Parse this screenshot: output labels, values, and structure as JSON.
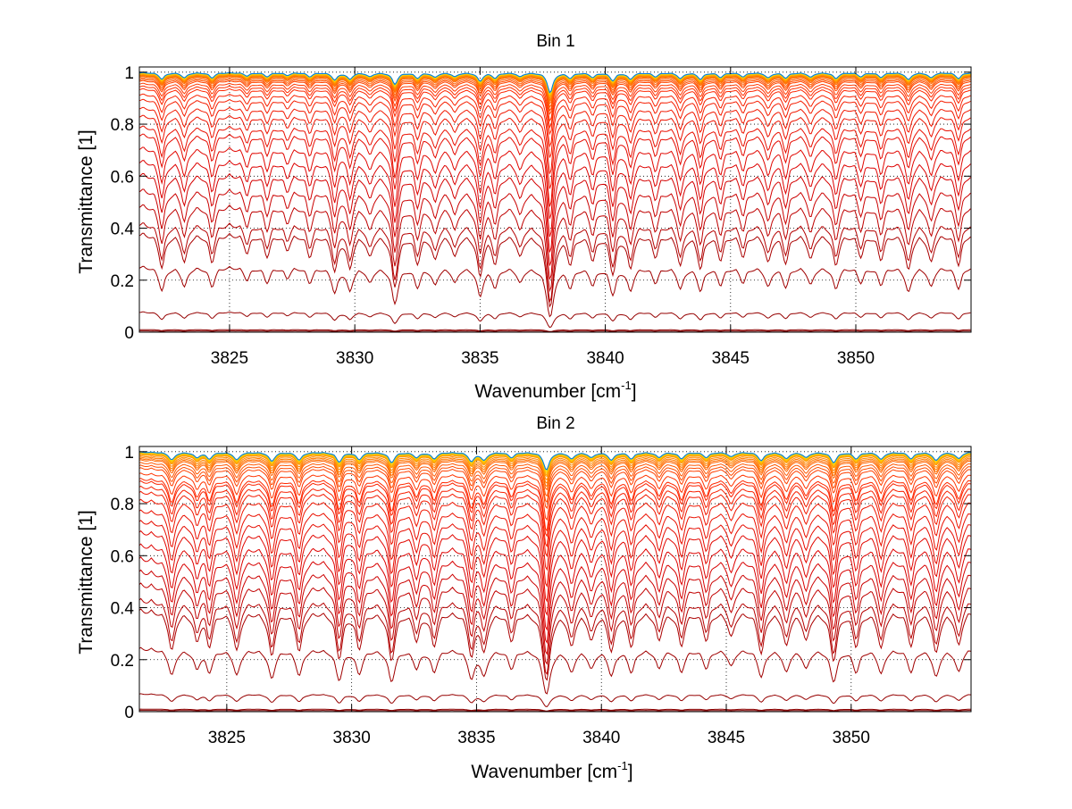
{
  "chart_data": [
    {
      "type": "line",
      "title": "Bin 1",
      "xlabel": "Wavenumber [cm",
      "xlabel_sup": "-1",
      "xlabel_end": "]",
      "ylabel": "Transmittance [1]",
      "xlim": [
        3821.4,
        3854.6
      ],
      "ylim": [
        0,
        1.02
      ],
      "xticks": [
        3825,
        3830,
        3835,
        3840,
        3845,
        3850
      ],
      "yticks": [
        0,
        0.2,
        0.4,
        0.6,
        0.8,
        1
      ],
      "ytick_labels": [
        "0",
        "0.2",
        "0.4",
        "0.6",
        "0.8",
        "1"
      ],
      "grid": true,
      "model": "T(x) = baseline * exp(-scale * sum(depth * w^2/((x-pos)^2 + w^2)))",
      "line_width": 0.13,
      "absorption_lines": [
        [
          3822.3,
          0.5
        ],
        [
          3823.2,
          0.4
        ],
        [
          3824.3,
          0.4
        ],
        [
          3825.7,
          0.25
        ],
        [
          3826.5,
          0.3
        ],
        [
          3827.3,
          0.2
        ],
        [
          3828.2,
          0.3
        ],
        [
          3829.2,
          0.55
        ],
        [
          3829.8,
          0.5
        ],
        [
          3830.6,
          0.3
        ],
        [
          3831.6,
          0.9
        ],
        [
          3832.5,
          0.4
        ],
        [
          3833.2,
          0.35
        ],
        [
          3834.0,
          0.3
        ],
        [
          3835.0,
          0.65
        ],
        [
          3835.6,
          0.4
        ],
        [
          3836.6,
          0.3
        ],
        [
          3837.8,
          1.6
        ],
        [
          3838.6,
          0.4
        ],
        [
          3839.5,
          0.35
        ],
        [
          3840.3,
          0.6
        ],
        [
          3841.0,
          0.5
        ],
        [
          3842.0,
          0.3
        ],
        [
          3843.0,
          0.45
        ],
        [
          3843.8,
          0.5
        ],
        [
          3844.6,
          0.35
        ],
        [
          3845.5,
          0.3
        ],
        [
          3846.5,
          0.4
        ],
        [
          3847.2,
          0.4
        ],
        [
          3848.2,
          0.35
        ],
        [
          3849.2,
          0.45
        ],
        [
          3850.2,
          0.3
        ],
        [
          3851.0,
          0.35
        ],
        [
          3852.1,
          0.55
        ],
        [
          3853.0,
          0.4
        ],
        [
          3854.1,
          0.45
        ]
      ],
      "series_baselines": [
        0.005,
        0.01,
        0.08,
        0.26,
        0.39,
        0.43,
        0.5,
        0.56,
        0.62,
        0.67,
        0.72,
        0.77,
        0.8,
        0.84,
        0.87,
        0.9,
        0.92,
        0.94,
        0.95,
        0.96,
        0.97,
        0.975,
        0.98,
        0.985,
        0.988,
        0.99,
        0.992,
        0.994,
        0.995,
        0.996,
        0.997,
        0.998,
        0.999,
        1.0,
        1.0,
        1.0
      ]
    },
    {
      "type": "line",
      "title": "Bin 2",
      "xlabel": "Wavenumber [cm",
      "xlabel_sup": "-1",
      "xlabel_end": "]",
      "ylabel": "Transmittance [1]",
      "xlim": [
        3821.5,
        3854.8
      ],
      "ylim": [
        0,
        1.02
      ],
      "xticks": [
        3825,
        3830,
        3835,
        3840,
        3845,
        3850
      ],
      "yticks": [
        0,
        0.2,
        0.4,
        0.6,
        0.8,
        1
      ],
      "ytick_labels": [
        "0",
        "0.2",
        "0.4",
        "0.6",
        "0.8",
        "1"
      ],
      "grid": true,
      "model": "T(x) = baseline * exp(-scale * sum(depth * w^2/((x-pos)^2 + w^2)))",
      "line_width": 0.14,
      "absorption_lines": [
        [
          3822.8,
          0.6
        ],
        [
          3823.8,
          0.4
        ],
        [
          3824.3,
          0.5
        ],
        [
          3825.4,
          0.6
        ],
        [
          3826.8,
          0.7
        ],
        [
          3827.9,
          0.6
        ],
        [
          3829.5,
          0.75
        ],
        [
          3830.3,
          0.55
        ],
        [
          3831.6,
          0.8
        ],
        [
          3832.6,
          0.4
        ],
        [
          3833.3,
          0.5
        ],
        [
          3834.8,
          0.7
        ],
        [
          3835.3,
          0.6
        ],
        [
          3836.4,
          0.4
        ],
        [
          3837.8,
          1.4
        ],
        [
          3838.8,
          0.5
        ],
        [
          3839.6,
          0.4
        ],
        [
          3840.4,
          0.6
        ],
        [
          3841.2,
          0.5
        ],
        [
          3842.3,
          0.4
        ],
        [
          3843.2,
          0.5
        ],
        [
          3844.2,
          0.4
        ],
        [
          3845.2,
          0.35
        ],
        [
          3846.4,
          0.65
        ],
        [
          3847.4,
          0.5
        ],
        [
          3848.2,
          0.4
        ],
        [
          3849.3,
          0.8
        ],
        [
          3850.2,
          0.5
        ],
        [
          3851.2,
          0.55
        ],
        [
          3852.4,
          0.5
        ],
        [
          3853.4,
          0.65
        ],
        [
          3854.3,
          0.5
        ]
      ],
      "series_baselines": [
        0.005,
        0.01,
        0.07,
        0.25,
        0.4,
        0.44,
        0.5,
        0.55,
        0.6,
        0.65,
        0.7,
        0.74,
        0.78,
        0.82,
        0.85,
        0.87,
        0.89,
        0.9,
        0.92,
        0.94,
        0.95,
        0.96,
        0.97,
        0.975,
        0.98,
        0.985,
        0.99,
        0.992,
        0.994,
        0.996,
        0.998,
        0.999,
        1.0,
        1.0,
        1.0
      ]
    }
  ]
}
